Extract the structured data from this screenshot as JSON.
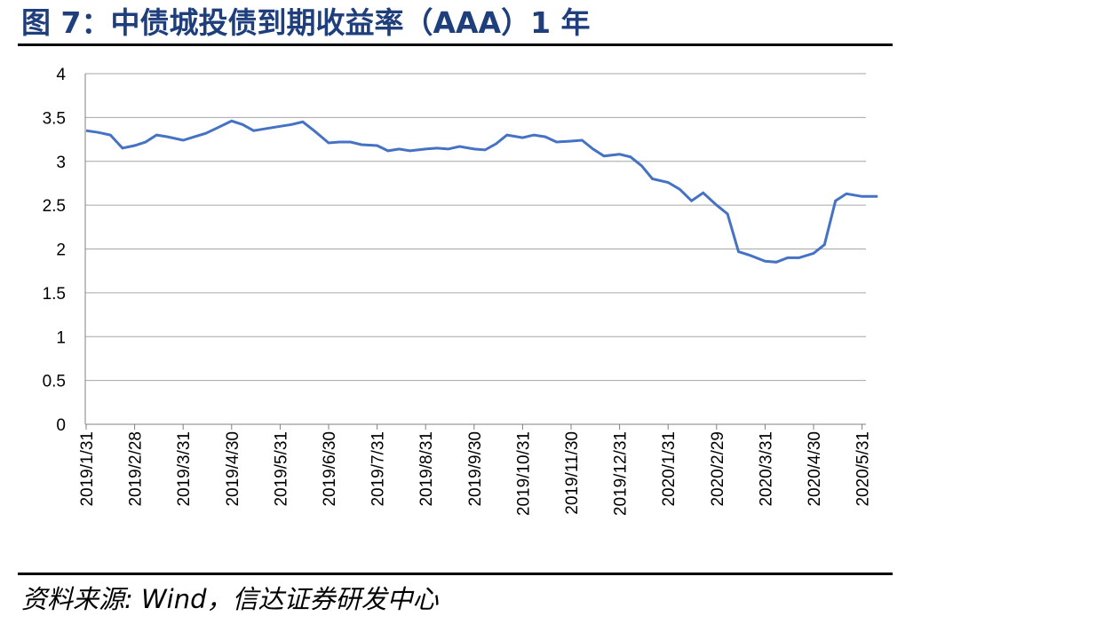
{
  "figure": {
    "title": "图 7：中债城投债到期收益率（AAA）1 年",
    "source": "资料来源: Wind，信达证券研发中心"
  },
  "colors": {
    "line": "#4472c4",
    "grid": "#a6a6a6",
    "title": "#1f3e7c"
  },
  "chart_data": {
    "type": "line",
    "title": "",
    "xlabel": "",
    "ylabel": "",
    "ylim": [
      0,
      4
    ],
    "yticks": [
      "0",
      "0.5",
      "1",
      "1.5",
      "2",
      "2.5",
      "3",
      "3.5",
      "4"
    ],
    "xticks": [
      "2019/1/31",
      "2019/2/28",
      "2019/3/31",
      "2019/4/30",
      "2019/5/31",
      "2019/6/30",
      "2019/7/31",
      "2019/8/31",
      "2019/9/30",
      "2019/10/31",
      "2019/11/30",
      "2019/12/31",
      "2020/1/31",
      "2020/2/29",
      "2020/3/31",
      "2020/4/30",
      "2020/5/31"
    ],
    "grid": true,
    "legend": "none",
    "series": [
      {
        "x": [
          "2019/1/31",
          "2019/2/7",
          "2019/2/14",
          "2019/2/21",
          "2019/2/28",
          "2019/3/7",
          "2019/3/14",
          "2019/3/21",
          "2019/3/31",
          "2019/4/7",
          "2019/4/14",
          "2019/4/21",
          "2019/4/30",
          "2019/5/7",
          "2019/5/14",
          "2019/5/21",
          "2019/5/31",
          "2019/6/7",
          "2019/6/14",
          "2019/6/21",
          "2019/6/30",
          "2019/7/7",
          "2019/7/14",
          "2019/7/21",
          "2019/7/31",
          "2019/8/7",
          "2019/8/14",
          "2019/8/21",
          "2019/8/31",
          "2019/9/7",
          "2019/9/14",
          "2019/9/21",
          "2019/9/30",
          "2019/10/7",
          "2019/10/14",
          "2019/10/21",
          "2019/10/31",
          "2019/11/7",
          "2019/11/14",
          "2019/11/21",
          "2019/11/30",
          "2019/12/7",
          "2019/12/14",
          "2019/12/21",
          "2019/12/31",
          "2020/1/7",
          "2020/1/14",
          "2020/1/21",
          "2020/1/31",
          "2020/2/7",
          "2020/2/14",
          "2020/2/21",
          "2020/2/29",
          "2020/3/7",
          "2020/3/14",
          "2020/3/21",
          "2020/3/31",
          "2020/4/7",
          "2020/4/14",
          "2020/4/21",
          "2020/4/30",
          "2020/5/7",
          "2020/5/14",
          "2020/5/21",
          "2020/5/31",
          "2020/6/4",
          "2020/6/7",
          "2020/6/10"
        ],
        "values": [
          3.35,
          3.33,
          3.3,
          3.15,
          3.18,
          3.22,
          3.3,
          3.28,
          3.24,
          3.28,
          3.32,
          3.38,
          3.46,
          3.42,
          3.35,
          3.37,
          3.4,
          3.42,
          3.45,
          3.35,
          3.21,
          3.22,
          3.22,
          3.19,
          3.18,
          3.12,
          3.14,
          3.12,
          3.14,
          3.15,
          3.14,
          3.17,
          3.14,
          3.13,
          3.2,
          3.3,
          3.27,
          3.3,
          3.28,
          3.22,
          3.23,
          3.24,
          3.14,
          3.06,
          3.08,
          3.05,
          2.95,
          2.8,
          2.76,
          2.68,
          2.55,
          2.64,
          2.5,
          2.4,
          1.97,
          1.93,
          1.86,
          1.85,
          1.9,
          1.9,
          1.95,
          2.05,
          2.55,
          2.63,
          2.6,
          2.6,
          2.6,
          2.6
        ]
      }
    ]
  }
}
